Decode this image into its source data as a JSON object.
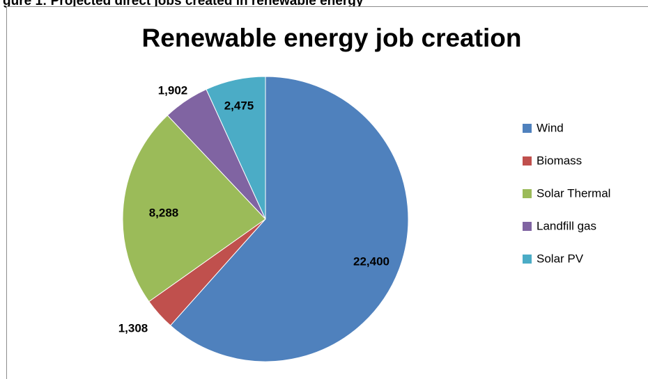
{
  "caption": "gure 1: Projected direct jobs created in renewable energy",
  "chart_data": {
    "type": "pie",
    "title": "Renewable energy job creation",
    "categories": [
      "Wind",
      "Biomass",
      "Solar Thermal",
      "Landfill gas",
      "Solar PV"
    ],
    "values": [
      22400,
      1308,
      8288,
      1902,
      2475
    ],
    "data_labels": [
      "22,400",
      "1,308",
      "8,288",
      "1,902",
      "2,475"
    ],
    "colors": [
      "#4f81bd",
      "#c0504d",
      "#9bbb59",
      "#8064a2",
      "#4bacc6"
    ],
    "legend_position": "right",
    "start_angle": "12 o'clock",
    "direction": "clockwise"
  }
}
